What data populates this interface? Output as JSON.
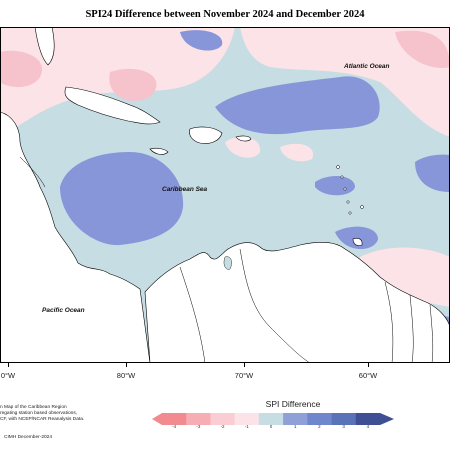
{
  "title": "SPI24 Difference between November 2024 and December 2024",
  "labels": {
    "atlantic": "Atlantic Ocean",
    "caribbean": "Caribbean Sea",
    "pacific": "Pacific Ocean"
  },
  "lon_ticks": [
    "0°W",
    "80°W",
    "70°W",
    "60°W"
  ],
  "footnote": {
    "line1": "n Map of the Caribbean Region",
    "line2": "regating station based observations,",
    "line3": "CF, with NCEP/NCAR Reanalysis Data.",
    "credit": "CIMH December-2024"
  },
  "legend": {
    "title": "SPI Difference",
    "ticks": [
      "-4",
      "-3",
      "-2",
      "-1",
      "0",
      "1",
      "2",
      "3",
      "4"
    ],
    "colors": [
      "#f28b90",
      "#f6aeb4",
      "#f9cdd3",
      "#fbe3e7",
      "#c5dde3",
      "#8fa0d8",
      "#6f86cc",
      "#5a73b8",
      "#3e4f94"
    ]
  },
  "colors": {
    "neutral": "#c5dde3",
    "dry_light": "#fbe3e7",
    "dry_mod": "#f6c2cb",
    "wet_mod": "#8796d8",
    "land": "#ffffff"
  }
}
